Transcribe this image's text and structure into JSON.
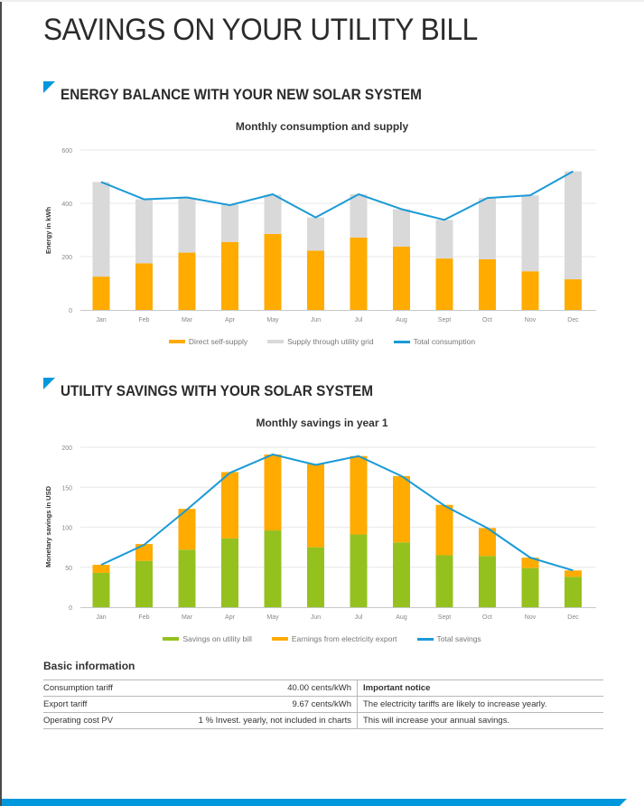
{
  "page": {
    "title": "SAVINGS ON YOUR UTILITY BILL"
  },
  "sections": [
    {
      "heading": "ENERGY BALANCE WITH YOUR NEW SOLAR SYSTEM"
    },
    {
      "heading": "UTILITY SAVINGS WITH YOUR SOLAR SYSTEM"
    }
  ],
  "colors": {
    "accent": "#0097dc",
    "orange": "#ffab00",
    "grey": "#d9d9d9",
    "green": "#95c11f",
    "line": "#1a9ad6"
  },
  "chart_data": [
    {
      "type": "bar",
      "stacked": true,
      "title": "Monthly consumption and supply",
      "xlabel": "",
      "ylabel": "Energy in kWh",
      "ylim": [
        0,
        600
      ],
      "yticks": [
        0,
        200,
        400,
        600
      ],
      "grid": true,
      "legend": "bottom-center",
      "categories": [
        "Jan",
        "Feb",
        "Mar",
        "Apr",
        "May",
        "Jun",
        "Jul",
        "Aug",
        "Sept",
        "Oct",
        "Nov",
        "Dec"
      ],
      "series": [
        {
          "name": "Direct self-supply",
          "kind": "bar",
          "color": "#ffab00",
          "values": [
            125,
            175,
            215,
            255,
            285,
            222,
            272,
            238,
            193,
            190,
            145,
            115
          ]
        },
        {
          "name": "Supply through utility grid",
          "kind": "bar",
          "color": "#d9d9d9",
          "values": [
            355,
            240,
            205,
            140,
            147,
            125,
            162,
            140,
            145,
            230,
            285,
            405
          ]
        },
        {
          "name": "Total consumption",
          "kind": "line",
          "color": "#1a9ad6",
          "values": [
            480,
            415,
            422,
            393,
            434,
            347,
            434,
            378,
            338,
            420,
            430,
            520
          ]
        }
      ]
    },
    {
      "type": "bar",
      "stacked": true,
      "title": "Monthly savings in year 1",
      "xlabel": "",
      "ylabel": "Monetary savings in USD",
      "ylim": [
        0,
        200
      ],
      "yticks": [
        0,
        50,
        100,
        150,
        200
      ],
      "grid": true,
      "legend": "bottom-center",
      "categories": [
        "Jan",
        "Feb",
        "Mar",
        "Apr",
        "May",
        "Jun",
        "Jul",
        "Aug",
        "Sept",
        "Oct",
        "Nov",
        "Dec"
      ],
      "series": [
        {
          "name": "Savings on utility bill",
          "kind": "bar",
          "color": "#95c11f",
          "values": [
            43,
            58,
            72,
            86,
            96,
            75,
            91,
            81,
            65,
            64,
            49,
            38
          ]
        },
        {
          "name": "Earnings from electricity export",
          "kind": "bar",
          "color": "#ffab00",
          "values": [
            10,
            21,
            51,
            83,
            95,
            104,
            98,
            83,
            63,
            35,
            13,
            8
          ]
        },
        {
          "name": "Total savings",
          "kind": "line",
          "color": "#1a9ad6",
          "values": [
            53,
            78,
            122,
            168,
            191,
            178,
            189,
            164,
            127,
            99,
            62,
            46
          ]
        }
      ]
    }
  ],
  "basic_info": {
    "title": "Basic information",
    "rows": [
      {
        "label": "Consumption tariff",
        "value": "40.00 cents/kWh",
        "note": "Important notice"
      },
      {
        "label": "Export tariff",
        "value": "9.67 cents/kWh",
        "note": "The electricity tariffs are likely to increase yearly."
      },
      {
        "label": "Operating cost PV",
        "value": "1 % Invest. yearly, not included in charts",
        "note": "This will increase your annual savings."
      }
    ]
  }
}
